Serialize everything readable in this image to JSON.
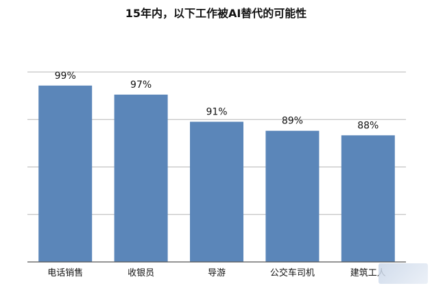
{
  "chart_data": {
    "type": "bar",
    "title": "15年内，以下工作被AI替代的可能性",
    "categories": [
      "电话销售",
      "收银员",
      "导游",
      "公交车司机",
      "建筑工人"
    ],
    "values": [
      99,
      97,
      91,
      89,
      88
    ],
    "value_labels": [
      "99%",
      "97%",
      "91%",
      "89%",
      "88%"
    ],
    "ylim": [
      60,
      102
    ],
    "grid": true,
    "bar_color": "#5b86b9"
  }
}
